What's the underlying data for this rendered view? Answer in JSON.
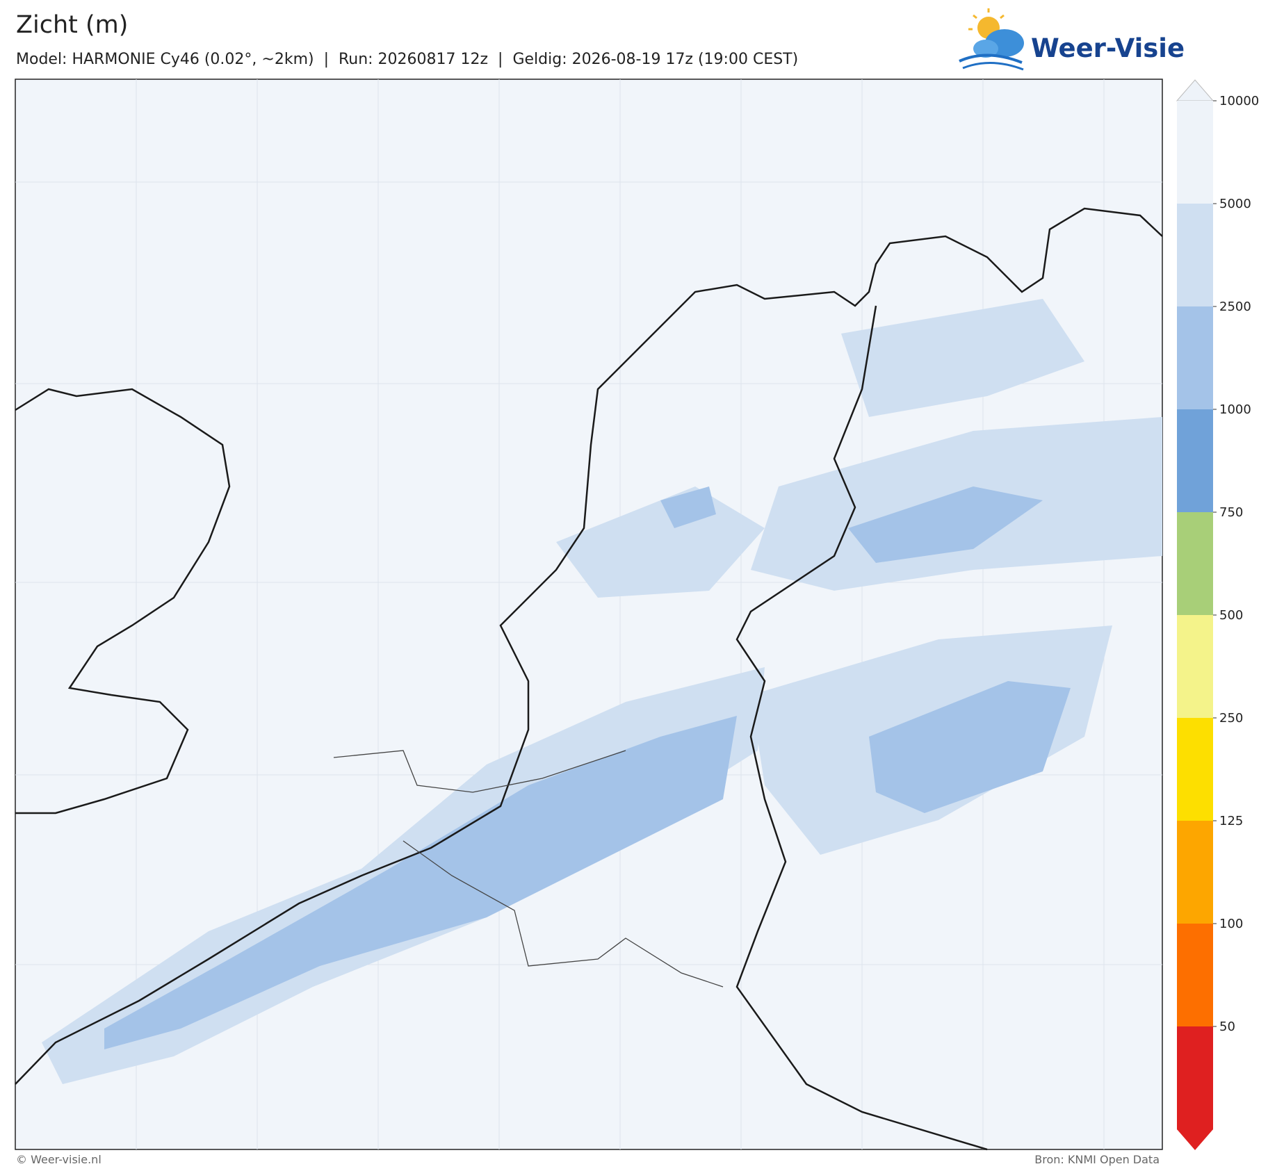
{
  "header": {
    "title": "Zicht (m)",
    "subtitle": "Model: HARMONIE Cy46 (0.02°, ~2km)  |  Run: 20260817 12z  |  Geldig: 2026-08-19 17z (19:00 CEST)"
  },
  "logo": {
    "text": "Weer-Visie"
  },
  "legend": {
    "ticks": [
      10000,
      5000,
      2500,
      1000,
      750,
      500,
      250,
      125,
      100,
      50
    ],
    "colors": [
      "#eef3f9",
      "#cfdff1",
      "#a4c3e8",
      "#70a2d9",
      "#a8cf78",
      "#f4f38a",
      "#fddf00",
      "#fda600",
      "#fd6f00",
      "#df2020"
    ]
  },
  "footer": {
    "left": "© Weer-visie.nl",
    "right": "Bron: KNMI Open Data"
  }
}
